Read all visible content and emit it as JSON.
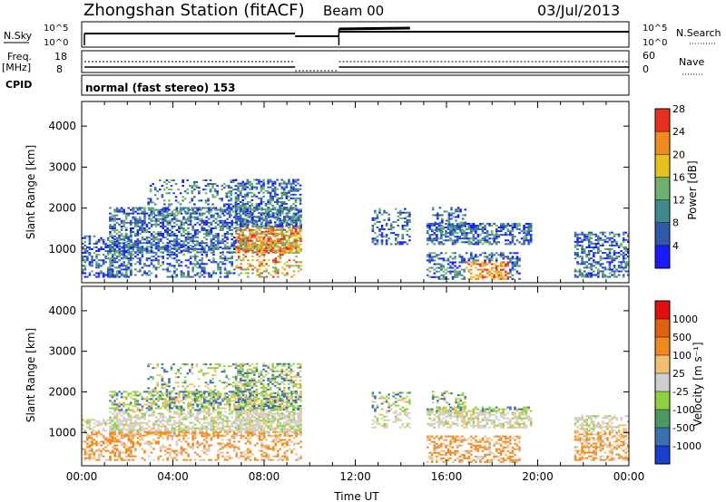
{
  "header": {
    "station": "Zhongshan Station (fitACF)",
    "beam": "Beam 00",
    "date": "03/Jul/2013"
  },
  "top_panels": {
    "nsky_label": "N.Sky",
    "nsearch_label": "N.Search",
    "nsky_ticks": [
      "10^5",
      "10^0"
    ],
    "nsearch_ticks": [
      "10^5",
      "10^0"
    ],
    "freq_label_1": "Freq.",
    "freq_label_2": "[MHz]",
    "freq_ticks": [
      "18",
      "8"
    ],
    "nave_label": "Nave",
    "nave_ticks": [
      "60",
      "0"
    ],
    "cpid_label": "CPID",
    "cpid_text": "normal (fast stereo) 153"
  },
  "chart_data": [
    {
      "type": "heatmap",
      "title": "",
      "ylabel": "Slant Range [km]",
      "xlabel": "",
      "ylim": [
        180,
        4600
      ],
      "yticks": [
        "1000",
        "2000",
        "3000",
        "4000"
      ],
      "colorbar": {
        "label": "Power [dB]",
        "ticks": [
          "4",
          "8",
          "12",
          "16",
          "20",
          "24",
          "28"
        ],
        "colors": [
          "#1a1aff",
          "#2f5aa8",
          "#3f8a8a",
          "#6fb06f",
          "#e8c020",
          "#f08a20",
          "#e83020"
        ]
      }
    },
    {
      "type": "heatmap",
      "title": "",
      "ylabel": "Slant Range [km]",
      "xlabel": "Time UT",
      "ylim": [
        180,
        4600
      ],
      "yticks": [
        "1000",
        "2000",
        "3000",
        "4000"
      ],
      "xticks": [
        "00:00",
        "04:00",
        "08:00",
        "12:00",
        "16:00",
        "20:00",
        "00:00"
      ],
      "colorbar": {
        "label": "Velocity [m s⁻¹]",
        "ticks": [
          "1000",
          "500",
          "100",
          "25",
          "-25",
          "-100",
          "-500",
          "-1000"
        ],
        "colors": [
          "#1a3fcf",
          "#3a6fb0",
          "#4a9a60",
          "#8fd040",
          "#cfcfcf",
          "#f0c070",
          "#f08a20",
          "#e06010",
          "#e01010"
        ]
      }
    }
  ]
}
